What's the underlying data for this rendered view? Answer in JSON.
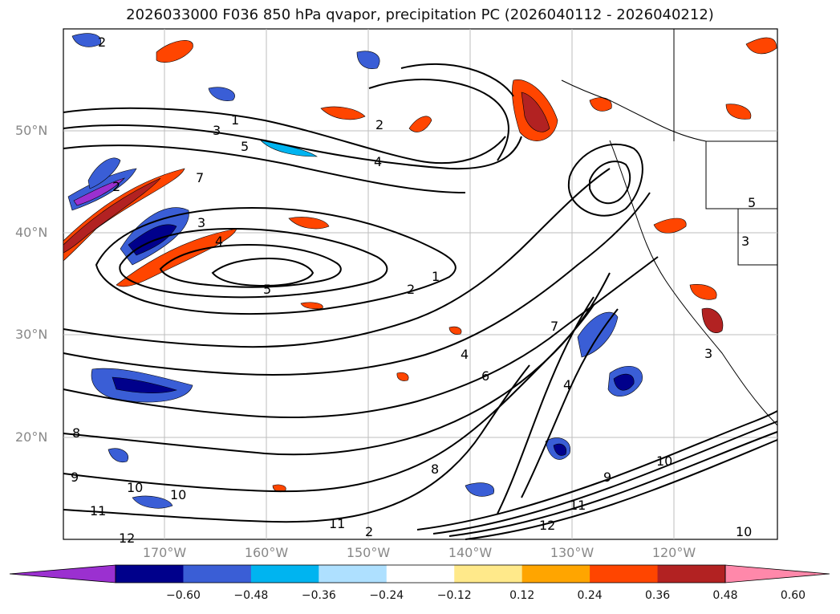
{
  "title": "2026033000 F036 850 hPa qvapor, precipitation PC (2026040112 - 2026040212)",
  "lat_labels": [
    "50°N",
    "40°N",
    "30°N",
    "20°N"
  ],
  "lon_labels": [
    "170°W",
    "160°W",
    "150°W",
    "140°W",
    "130°W",
    "120°W"
  ],
  "colorbar": {
    "ticks": [
      "−0.60",
      "−0.48",
      "−0.36",
      "−0.24",
      "−0.12",
      "0.12",
      "0.24",
      "0.36",
      "0.48",
      "0.60"
    ],
    "colors": [
      "#9b30d0",
      "#00008b",
      "#3a5ed6",
      "#00b4f0",
      "#aee0ff",
      "#ffffff",
      "#ffe98a",
      "#ffa500",
      "#ff4500",
      "#b22222",
      "#ff88aa"
    ]
  },
  "contour_labels": [
    "2",
    "1",
    "3",
    "5",
    "4",
    "2",
    "2",
    "7",
    "3",
    "4",
    "5",
    "2",
    "1",
    "4",
    "6",
    "7",
    "8",
    "9",
    "10",
    "11",
    "12",
    "11",
    "10",
    "2",
    "5",
    "3",
    "4",
    "8",
    "9",
    "10",
    "11",
    "12",
    "3",
    "10"
  ]
}
